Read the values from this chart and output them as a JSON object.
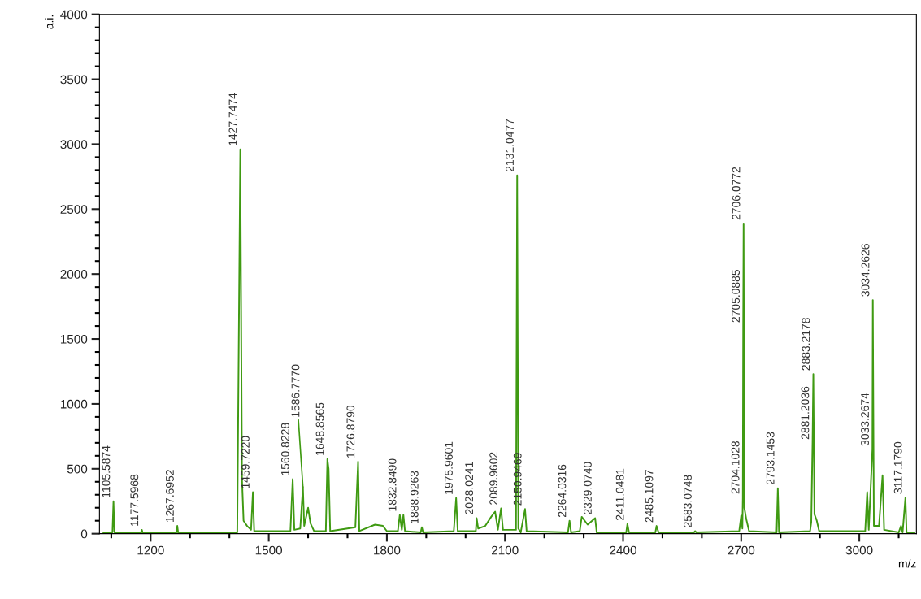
{
  "chart_data": {
    "type": "line",
    "xlabel": "m/z",
    "ylabel": "a.i.",
    "xlim": [
      1070,
      3145
    ],
    "xticks": [
      1200,
      1500,
      1800,
      2100,
      2400,
      2700,
      3000
    ],
    "ylim": [
      0,
      4000
    ],
    "yticks": [
      0,
      500,
      1000,
      1500,
      2000,
      2500,
      3000,
      3500,
      4000
    ],
    "grid": false,
    "marker": "none",
    "line_style": "solid",
    "series": [
      {
        "color": "#3f9a12",
        "x": [
          1080,
          1103,
          1105.6,
          1108,
          1175,
          1177.6,
          1180,
          1265,
          1267.7,
          1270,
          1420,
          1427.7,
          1432,
          1436,
          1445,
          1455,
          1459.7,
          1463,
          1555,
          1560.8,
          1565,
          1580,
          1586.8,
          1590,
          1600,
          1606,
          1615,
          1645,
          1648.9,
          1652,
          1656,
          1720,
          1726.9,
          1730,
          1770,
          1790,
          1800,
          1828,
          1832.8,
          1838,
          1842,
          1846,
          1886,
          1888.9,
          1892,
          1970,
          1976,
          1980,
          2026,
          2028,
          2032,
          2050,
          2065,
          2075,
          2082,
          2090,
          2095,
          2128,
          2131,
          2134,
          2140,
          2151,
          2155,
          2260,
          2264,
          2268,
          2290,
          2295,
          2310,
          2329,
          2333,
          2408,
          2411,
          2415,
          2482,
          2485,
          2490,
          2580,
          2583,
          2586,
          2695,
          2700,
          2703,
          2704.1,
          2705.1,
          2706.1,
          2708,
          2713,
          2720,
          2790,
          2793,
          2796,
          2875,
          2878,
          2881.2,
          2883.2,
          2886,
          2892,
          2898,
          3015,
          3020,
          3024,
          3033.3,
          3034.3,
          3037,
          3050,
          3059,
          3063,
          3100,
          3106,
          3110,
          3117.2,
          3120,
          3140
        ],
        "values": [
          5,
          10,
          250,
          10,
          5,
          30,
          5,
          5,
          60,
          5,
          10,
          2960,
          420,
          100,
          60,
          30,
          320,
          20,
          20,
          420,
          30,
          40,
          360,
          60,
          200,
          80,
          20,
          20,
          575,
          500,
          20,
          50,
          555,
          20,
          70,
          60,
          20,
          20,
          145,
          30,
          145,
          20,
          10,
          50,
          10,
          20,
          275,
          20,
          20,
          120,
          40,
          60,
          130,
          170,
          30,
          195,
          30,
          30,
          2760,
          40,
          10,
          190,
          20,
          10,
          100,
          10,
          20,
          130,
          70,
          120,
          10,
          10,
          75,
          10,
          10,
          60,
          10,
          10,
          20,
          10,
          20,
          140,
          40,
          280,
          1600,
          2390,
          200,
          110,
          20,
          10,
          350,
          10,
          20,
          90,
          700,
          1230,
          150,
          100,
          20,
          20,
          320,
          30,
          650,
          1800,
          60,
          60,
          450,
          30,
          10,
          60,
          10,
          280,
          10,
          5
        ]
      }
    ],
    "annotations": [
      {
        "text": "1105.5874",
        "x": 1105.6,
        "y": 250
      },
      {
        "text": "1177.5968",
        "x": 1177.6,
        "y": 30
      },
      {
        "text": "1267.6952",
        "x": 1267.7,
        "y": 60
      },
      {
        "text": "1427.7474",
        "x": 1427.7,
        "y": 2960
      },
      {
        "text": "1459.7220",
        "x": 1459.7,
        "y": 320
      },
      {
        "text": "1560.8228",
        "x": 1560.8,
        "y": 420
      },
      {
        "text": "1586.7770",
        "x": 1586.8,
        "y": 360
      },
      {
        "text": "1648.8565",
        "x": 1648.9,
        "y": 575
      },
      {
        "text": "1726.8790",
        "x": 1726.9,
        "y": 555
      },
      {
        "text": "1832.8490",
        "x": 1832.8,
        "y": 145
      },
      {
        "text": "1888.9263",
        "x": 1888.9,
        "y": 50
      },
      {
        "text": "1975.9601",
        "x": 1976,
        "y": 275
      },
      {
        "text": "2028.0241",
        "x": 2028,
        "y": 120
      },
      {
        "text": "2089.9602",
        "x": 2090,
        "y": 195
      },
      {
        "text": "2131.0477",
        "x": 2131,
        "y": 2760
      },
      {
        "text": "2150.9469",
        "x": 2151,
        "y": 190
      },
      {
        "text": "2264.0316",
        "x": 2264,
        "y": 100
      },
      {
        "text": "2329.0740",
        "x": 2329,
        "y": 120
      },
      {
        "text": "2411.0481",
        "x": 2411,
        "y": 75
      },
      {
        "text": "2485.1097",
        "x": 2485,
        "y": 60
      },
      {
        "text": "2583.0748",
        "x": 2583,
        "y": 20
      },
      {
        "text": "2704.1028",
        "x": 2704.1,
        "y": 280
      },
      {
        "text": "2705.0885",
        "x": 2705.1,
        "y": 1600
      },
      {
        "text": "2706.0772",
        "x": 2706.1,
        "y": 2390
      },
      {
        "text": "2793.1453",
        "x": 2793,
        "y": 350
      },
      {
        "text": "2881.2036",
        "x": 2881.2,
        "y": 700
      },
      {
        "text": "2883.2178",
        "x": 2883.2,
        "y": 1230
      },
      {
        "text": "3033.2674",
        "x": 3033.3,
        "y": 650
      },
      {
        "text": "3034.2626",
        "x": 3034.3,
        "y": 1800
      },
      {
        "text": "3117.1790",
        "x": 3117.2,
        "y": 280
      }
    ]
  }
}
